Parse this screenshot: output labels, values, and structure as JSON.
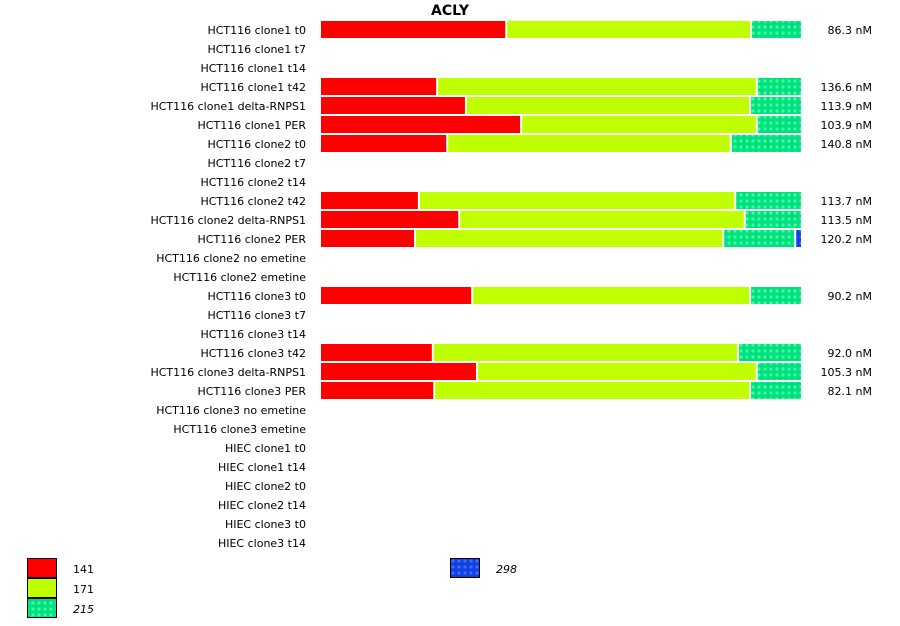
{
  "chart_data": {
    "type": "bar",
    "orientation": "horizontal",
    "stacked": true,
    "normalized": true,
    "title": "ACLY",
    "categories": [
      "HCT116 clone1 t0",
      "HCT116 clone1 t7",
      "HCT116 clone1 t14",
      "HCT116 clone1 t42",
      "HCT116 clone1 delta-RNPS1",
      "HCT116 clone1 PER",
      "HCT116 clone2 t0",
      "HCT116 clone2 t7",
      "HCT116 clone2 t14",
      "HCT116 clone2 t42",
      "HCT116 clone2 delta-RNPS1",
      "HCT116 clone2 PER",
      "HCT116 clone2 no emetine",
      "HCT116 clone2 emetine",
      "HCT116 clone3 t0",
      "HCT116 clone3 t7",
      "HCT116 clone3 t14",
      "HCT116 clone3 t42",
      "HCT116 clone3 delta-RNPS1",
      "HCT116 clone3 PER",
      "HCT116 clone3 no emetine",
      "HCT116 clone3 emetine",
      "HIEC clone1 t0",
      "HIEC clone1 t14",
      "HIEC clone2 t0",
      "HIEC clone2 t14",
      "HIEC clone3 t0",
      "HIEC clone3 t14"
    ],
    "series": [
      {
        "name": "141",
        "color": "#ff0000",
        "pattern": "solid",
        "italic": false,
        "values": [
          38.8,
          null,
          null,
          24.4,
          30.4,
          41.9,
          26.5,
          null,
          null,
          20.6,
          29.0,
          19.8,
          null,
          null,
          31.7,
          null,
          null,
          23.5,
          32.7,
          23.8,
          null,
          null,
          null,
          null,
          null,
          null,
          null,
          null
        ]
      },
      {
        "name": "171",
        "color": "#c0ff00",
        "pattern": "solid",
        "italic": false,
        "values": [
          51.0,
          null,
          null,
          66.6,
          59.2,
          49.1,
          59.1,
          null,
          null,
          65.9,
          59.5,
          64.2,
          null,
          null,
          57.9,
          null,
          null,
          63.6,
          58.3,
          65.8,
          null,
          null,
          null,
          null,
          null,
          null,
          null,
          null
        ]
      },
      {
        "name": "215",
        "color": "#00e080",
        "pattern": "dots",
        "italic": true,
        "values": [
          10.2,
          null,
          null,
          9.0,
          10.4,
          9.0,
          14.4,
          null,
          null,
          13.5,
          11.5,
          15.0,
          null,
          null,
          10.4,
          null,
          null,
          12.9,
          9.0,
          10.4,
          null,
          null,
          null,
          null,
          null,
          null,
          null,
          null
        ]
      },
      {
        "name": "298",
        "color": "#1040e0",
        "pattern": "dots",
        "italic": true,
        "values": [
          0,
          null,
          null,
          0,
          0,
          0,
          0,
          null,
          null,
          0,
          0,
          1.0,
          null,
          null,
          0,
          null,
          null,
          0,
          0,
          0,
          null,
          null,
          null,
          null,
          null,
          null,
          null,
          null
        ]
      }
    ],
    "totals": [
      "86.3 nM",
      "",
      "",
      "136.6 nM",
      "113.9 nM",
      "103.9 nM",
      "140.8 nM",
      "",
      "",
      "113.7 nM",
      "113.5 nM",
      "120.2 nM",
      "",
      "",
      "90.2 nM",
      "",
      "",
      "92.0 nM",
      "105.3 nM",
      "82.1 nM",
      "",
      "",
      "",
      "",
      "",
      "",
      "",
      ""
    ],
    "unit": "%",
    "legend_position": "bottom",
    "grid": false
  }
}
